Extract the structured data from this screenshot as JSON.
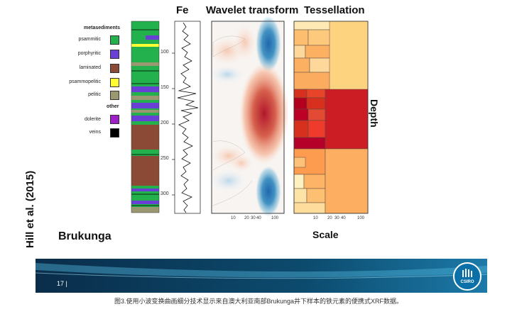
{
  "titles": {
    "fe": "Fe",
    "wavelet": "Wavelet transform",
    "tessellation": "Tessellation"
  },
  "legend": {
    "metasediments_heading": "metasediments",
    "other_heading": "other",
    "items": [
      {
        "label": "psammitic",
        "color": "#22b14c"
      },
      {
        "label": "porphyritic",
        "color": "#6a3fd6"
      },
      {
        "label": "laminated",
        "color": "#8a4a35"
      },
      {
        "label": "psammopelitic",
        "color": "#ffff33"
      },
      {
        "label": "pelitic",
        "color": "#9a9870"
      },
      {
        "label": "dolerite",
        "color": "#a020c8"
      },
      {
        "label": "veins",
        "color": "#000000"
      }
    ]
  },
  "depth_ticks": [
    "100",
    "150",
    "200",
    "250",
    "300"
  ],
  "scale_ticks": [
    "10",
    "20",
    "30",
    "40",
    "100"
  ],
  "axis_labels": {
    "depth": "Depth",
    "scale": "Scale"
  },
  "author": "Hill et al. (2015)",
  "site": "Brukunga",
  "footer": {
    "page_number": "17 |",
    "logo_text": "CSIRO"
  },
  "caption": "图3.使用小波变换曲画细分技术显示来自澳大利亚南部Brukunga井下样本的铁元素的便携式XRF数据。"
}
